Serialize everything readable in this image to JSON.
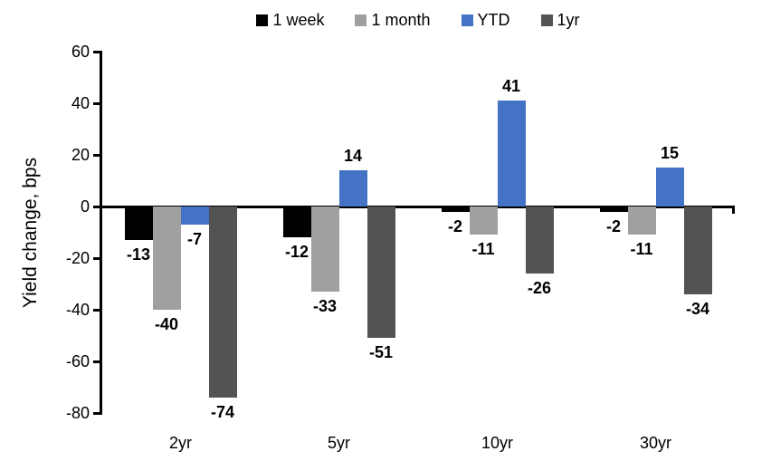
{
  "chart_data": {
    "type": "bar",
    "title": "",
    "xlabel": "",
    "ylabel": "Yield change, bps",
    "ylim": [
      -80,
      60
    ],
    "yticks": [
      60,
      40,
      20,
      0,
      -20,
      -40,
      -60,
      -80
    ],
    "grid": false,
    "legend_position": "top",
    "data_labels": true,
    "categories": [
      "2yr",
      "5yr",
      "10yr",
      "30yr"
    ],
    "series": [
      {
        "name": "1 week",
        "color": "#000000",
        "values": [
          -13,
          -12,
          -2,
          -2
        ]
      },
      {
        "name": "1 month",
        "color": "#A0A0A0",
        "values": [
          -40,
          -33,
          -11,
          -11
        ]
      },
      {
        "name": "YTD",
        "color": "#4472C4",
        "values": [
          -7,
          14,
          41,
          15
        ]
      },
      {
        "name": "1yr",
        "color": "#535353",
        "values": [
          -74,
          -51,
          -26,
          -34
        ]
      }
    ]
  }
}
